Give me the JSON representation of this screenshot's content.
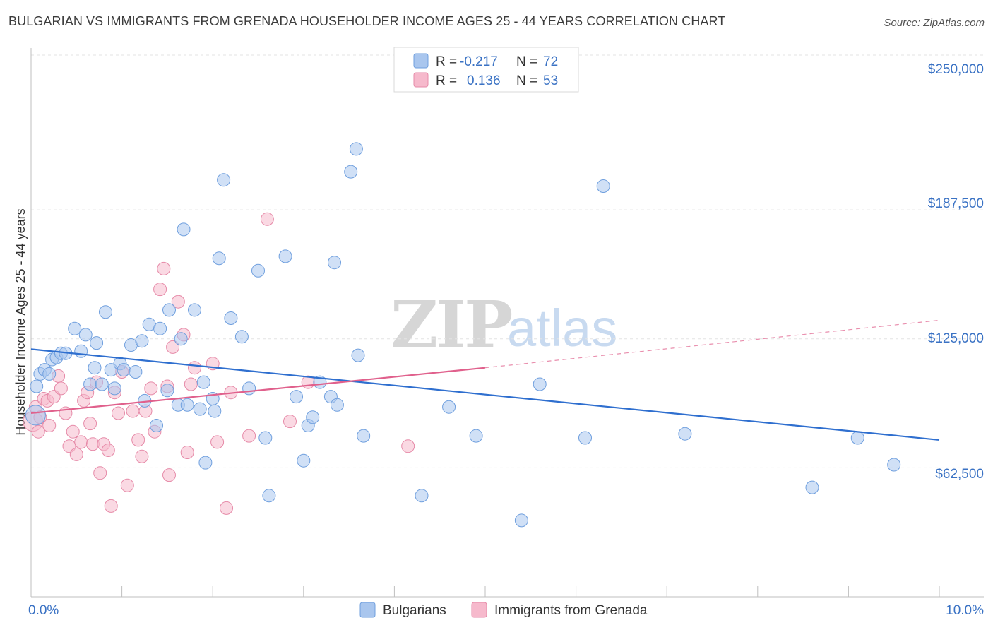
{
  "title": "BULGARIAN VS IMMIGRANTS FROM GRENADA HOUSEHOLDER INCOME AGES 25 - 44 YEARS CORRELATION CHART",
  "source": "Source: ZipAtlas.com",
  "watermark": {
    "zip": "ZIP",
    "atlas": "atlas"
  },
  "colors": {
    "blue_fill": "#a9c6ee",
    "blue_stroke": "#6f9fde",
    "blue_line": "#2f6fcf",
    "pink_fill": "#f6b9cc",
    "pink_stroke": "#e68aa8",
    "pink_line": "#e0608c",
    "grid": "#e3e3e3",
    "value_text": "#3a72c4"
  },
  "legend": {
    "rows": [
      {
        "r_label": "R =",
        "r_value": "-0.217",
        "n_label": "N =",
        "n_value": "72",
        "series": "blue"
      },
      {
        "r_label": "R =",
        "r_value": "0.136",
        "n_label": "N =",
        "n_value": "53",
        "series": "pink"
      }
    ]
  },
  "bottom_legend": [
    {
      "label": "Bulgarians",
      "series": "blue"
    },
    {
      "label": "Immigrants from Grenada",
      "series": "pink"
    }
  ],
  "chart_data": {
    "type": "scatter",
    "title": "BULGARIAN VS IMMIGRANTS FROM GRENADA HOUSEHOLDER INCOME AGES 25 - 44 YEARS CORRELATION CHART",
    "xlabel": "",
    "ylabel": "Householder Income Ages 25 - 44 years",
    "xlim": [
      0,
      10
    ],
    "ylim": [
      0,
      262500
    ],
    "x_tick_labels": [
      {
        "value": 0,
        "label": "0.0%"
      },
      {
        "value": 10,
        "label": "10.0%"
      }
    ],
    "y_ticks": [
      {
        "value": 62500,
        "label": "$62,500"
      },
      {
        "value": 125000,
        "label": "$125,000"
      },
      {
        "value": 187500,
        "label": "$187,500"
      },
      {
        "value": 250000,
        "label": "$250,000"
      }
    ],
    "x_minor_ticks": [
      1,
      2,
      3,
      4,
      5,
      6,
      7,
      8,
      9,
      10
    ],
    "series": [
      {
        "name": "Bulgarians",
        "color": "blue",
        "r": -0.217,
        "n": 72,
        "trend": {
          "x0": 0.0,
          "y0": 120000,
          "x1": 10.0,
          "y1": 76000
        },
        "points": [
          [
            0.05,
            88000
          ],
          [
            0.06,
            102000
          ],
          [
            0.1,
            108000
          ],
          [
            0.15,
            110000
          ],
          [
            0.2,
            108000
          ],
          [
            0.23,
            115000
          ],
          [
            0.28,
            116000
          ],
          [
            0.33,
            118000
          ],
          [
            0.38,
            118000
          ],
          [
            0.48,
            130000
          ],
          [
            0.55,
            119000
          ],
          [
            0.6,
            127000
          ],
          [
            0.65,
            103000
          ],
          [
            0.7,
            111000
          ],
          [
            0.72,
            123000
          ],
          [
            0.78,
            103000
          ],
          [
            0.82,
            138000
          ],
          [
            0.88,
            110000
          ],
          [
            0.92,
            101000
          ],
          [
            0.98,
            113000
          ],
          [
            1.02,
            110000
          ],
          [
            1.1,
            122000
          ],
          [
            1.15,
            109000
          ],
          [
            1.22,
            124000
          ],
          [
            1.25,
            95000
          ],
          [
            1.3,
            132000
          ],
          [
            1.38,
            83000
          ],
          [
            1.42,
            130000
          ],
          [
            1.5,
            100000
          ],
          [
            1.52,
            139000
          ],
          [
            1.62,
            93000
          ],
          [
            1.65,
            125000
          ],
          [
            1.68,
            178000
          ],
          [
            1.72,
            93000
          ],
          [
            1.8,
            139000
          ],
          [
            1.86,
            91000
          ],
          [
            1.9,
            104000
          ],
          [
            1.92,
            65000
          ],
          [
            2.0,
            96000
          ],
          [
            2.02,
            90000
          ],
          [
            2.07,
            164000
          ],
          [
            2.12,
            202000
          ],
          [
            2.2,
            135000
          ],
          [
            2.32,
            126000
          ],
          [
            2.4,
            101000
          ],
          [
            2.5,
            158000
          ],
          [
            2.58,
            77000
          ],
          [
            2.62,
            49000
          ],
          [
            2.8,
            165000
          ],
          [
            2.92,
            97000
          ],
          [
            3.0,
            66000
          ],
          [
            3.05,
            83000
          ],
          [
            3.1,
            87000
          ],
          [
            3.18,
            104000
          ],
          [
            3.3,
            97000
          ],
          [
            3.34,
            162000
          ],
          [
            3.37,
            93000
          ],
          [
            3.52,
            206000
          ],
          [
            3.58,
            217000
          ],
          [
            3.6,
            117000
          ],
          [
            3.66,
            78000
          ],
          [
            4.3,
            49000
          ],
          [
            4.6,
            92000
          ],
          [
            4.9,
            78000
          ],
          [
            5.4,
            37000
          ],
          [
            5.6,
            103000
          ],
          [
            6.1,
            77000
          ],
          [
            6.3,
            199000
          ],
          [
            7.2,
            79000
          ],
          [
            8.6,
            53000
          ],
          [
            9.1,
            77000
          ],
          [
            9.5,
            64000
          ]
        ]
      },
      {
        "name": "Immigrants from Grenada",
        "color": "pink",
        "r": 0.136,
        "n": 53,
        "trend": {
          "x0": 0.0,
          "y0": 89000,
          "x1": 5.0,
          "y1": 111000,
          "dash_x1": 10.0,
          "dash_y1": 134000
        },
        "points": [
          [
            0.02,
            85000
          ],
          [
            0.05,
            92000
          ],
          [
            0.08,
            80000
          ],
          [
            0.1,
            87000
          ],
          [
            0.14,
            96000
          ],
          [
            0.18,
            95000
          ],
          [
            0.2,
            83000
          ],
          [
            0.25,
            97000
          ],
          [
            0.3,
            107000
          ],
          [
            0.33,
            101000
          ],
          [
            0.38,
            89000
          ],
          [
            0.42,
            73000
          ],
          [
            0.46,
            80000
          ],
          [
            0.5,
            69000
          ],
          [
            0.55,
            75000
          ],
          [
            0.58,
            95000
          ],
          [
            0.62,
            99000
          ],
          [
            0.65,
            84000
          ],
          [
            0.68,
            74000
          ],
          [
            0.72,
            104000
          ],
          [
            0.76,
            60000
          ],
          [
            0.8,
            74000
          ],
          [
            0.85,
            71000
          ],
          [
            0.88,
            44000
          ],
          [
            0.92,
            99000
          ],
          [
            0.96,
            89000
          ],
          [
            1.0,
            109000
          ],
          [
            1.06,
            54000
          ],
          [
            1.12,
            90000
          ],
          [
            1.18,
            76000
          ],
          [
            1.22,
            68000
          ],
          [
            1.26,
            90000
          ],
          [
            1.32,
            101000
          ],
          [
            1.36,
            80000
          ],
          [
            1.42,
            149000
          ],
          [
            1.46,
            159000
          ],
          [
            1.5,
            102000
          ],
          [
            1.52,
            59000
          ],
          [
            1.56,
            121000
          ],
          [
            1.62,
            143000
          ],
          [
            1.68,
            127000
          ],
          [
            1.72,
            70000
          ],
          [
            1.76,
            103000
          ],
          [
            1.8,
            111000
          ],
          [
            2.0,
            113000
          ],
          [
            2.05,
            75000
          ],
          [
            2.15,
            43000
          ],
          [
            2.2,
            99000
          ],
          [
            2.4,
            78000
          ],
          [
            2.6,
            183000
          ],
          [
            2.85,
            85000
          ],
          [
            3.05,
            104000
          ],
          [
            4.15,
            73000
          ]
        ]
      }
    ]
  }
}
